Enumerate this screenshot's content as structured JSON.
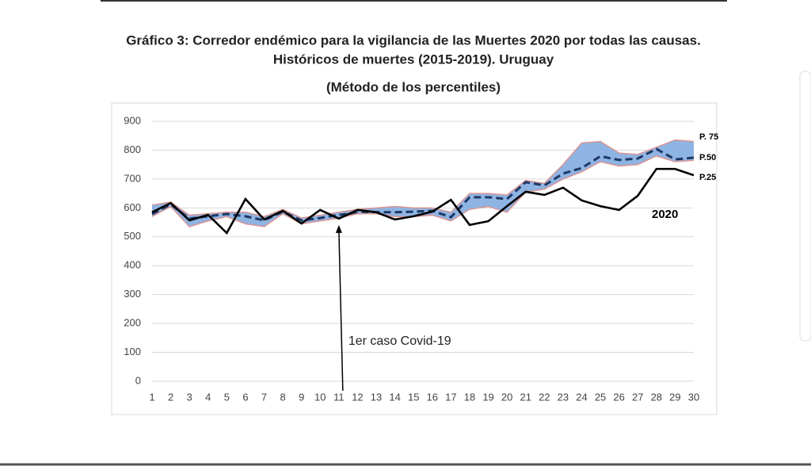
{
  "chart_data": {
    "type": "line",
    "title": [
      "Gráfico 3: Corredor endémico para la vigilancia de las Muertes 2020 por todas las causas.",
      "Históricos de muertes (2015-2019). Uruguay"
    ],
    "subtitle": "(Método de los percentiles)",
    "x": [
      1,
      2,
      3,
      4,
      5,
      6,
      7,
      8,
      9,
      10,
      11,
      12,
      13,
      14,
      15,
      16,
      17,
      18,
      19,
      20,
      21,
      22,
      23,
      24,
      25,
      26,
      27,
      28,
      29,
      30
    ],
    "xlim": [
      1,
      30
    ],
    "xticks": [
      1,
      2,
      3,
      4,
      5,
      6,
      7,
      8,
      9,
      10,
      11,
      12,
      13,
      14,
      15,
      16,
      17,
      18,
      19,
      20,
      21,
      22,
      23,
      24,
      25,
      26,
      27,
      28,
      29,
      30
    ],
    "ylim": [
      0,
      900
    ],
    "yticks": [
      0,
      100,
      200,
      300,
      400,
      500,
      600,
      700,
      800,
      900
    ],
    "grid": true,
    "band_fill": "#8eb4e3",
    "series": [
      {
        "name": "P. 75",
        "color": "#d99594",
        "values": [
          610,
          620,
          575,
          580,
          585,
          585,
          570,
          595,
          565,
          575,
          585,
          595,
          600,
          605,
          600,
          600,
          585,
          650,
          650,
          645,
          695,
          685,
          750,
          825,
          830,
          790,
          785,
          810,
          835,
          830
        ]
      },
      {
        "name": "P.50",
        "color": "#1f3864",
        "values": [
          579,
          612,
          563,
          571,
          579,
          571,
          557,
          587,
          557,
          565,
          576,
          582,
          585,
          585,
          587,
          590,
          568,
          637,
          637,
          631,
          689,
          678,
          719,
          738,
          779,
          766,
          771,
          804,
          768,
          774
        ]
      },
      {
        "name": "P.25",
        "color": "#d99594",
        "values": [
          570,
          605,
          535,
          555,
          570,
          545,
          535,
          580,
          545,
          555,
          565,
          580,
          580,
          570,
          570,
          575,
          555,
          595,
          605,
          585,
          655,
          665,
          700,
          725,
          760,
          745,
          750,
          780,
          760,
          765
        ]
      },
      {
        "name": "2020",
        "color": "#000000",
        "values": [
          585,
          617,
          557,
          576,
          513,
          631,
          560,
          590,
          546,
          593,
          563,
          593,
          585,
          560,
          571,
          587,
          628,
          541,
          554,
          606,
          656,
          645,
          670,
          626,
          606,
          593,
          642,
          735,
          735,
          713
        ]
      }
    ],
    "annotation": {
      "text": "1er caso Covid-19",
      "x": 11
    }
  }
}
